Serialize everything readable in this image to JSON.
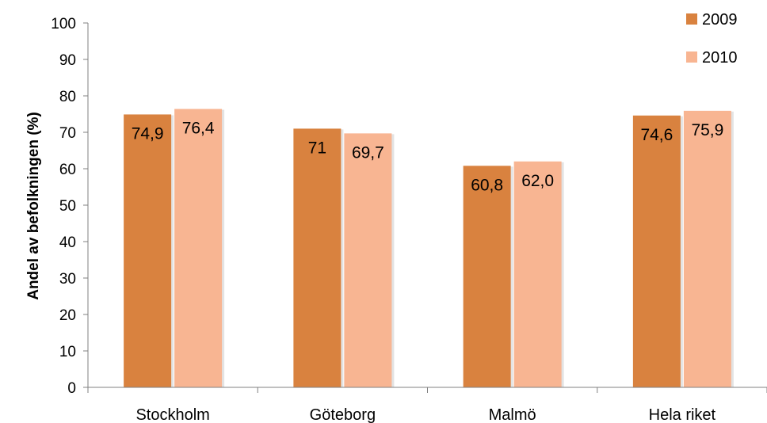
{
  "chart_data": {
    "type": "bar",
    "title": "",
    "xlabel": "",
    "ylabel": "Andel av befolkningen (%)",
    "ylim": [
      0,
      100
    ],
    "yticks": [
      0,
      10,
      20,
      30,
      40,
      50,
      60,
      70,
      80,
      90,
      100
    ],
    "categories": [
      "Stockholm",
      "Göteborg",
      "Malmö",
      "Hela riket"
    ],
    "series": [
      {
        "name": "2009",
        "color": "#D9823F",
        "values": [
          74.9,
          71,
          60.8,
          74.6
        ],
        "labels": [
          "74,9",
          "71",
          "60,8",
          "74,6"
        ]
      },
      {
        "name": "2010",
        "color": "#F8B592",
        "values": [
          76.4,
          69.7,
          62.0,
          75.9
        ],
        "labels": [
          "76,4",
          "69,7",
          "62,0",
          "75,9"
        ]
      }
    ],
    "grid": false,
    "legend": "top-right"
  }
}
